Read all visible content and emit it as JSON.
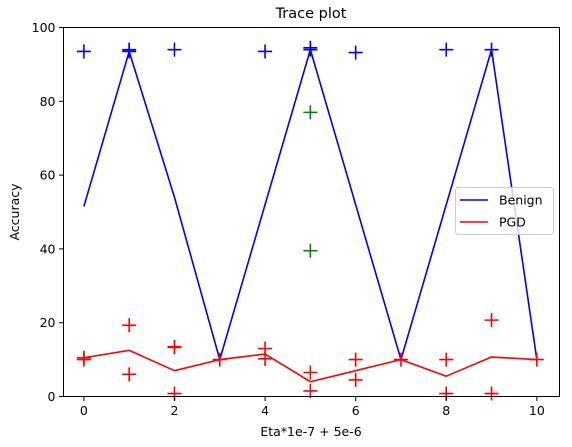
{
  "chart_data": {
    "type": "line",
    "title": "Trace plot",
    "xlabel": "Eta*1e-7 + 5e-6",
    "ylabel": "Accuracy",
    "xlim": [
      -0.45,
      10.5
    ],
    "ylim": [
      0,
      100
    ],
    "xticks": [
      0,
      2,
      4,
      6,
      8,
      10
    ],
    "yticks": [
      0,
      20,
      40,
      60,
      80,
      100
    ],
    "grid": false,
    "legend_position": "center-right",
    "series": [
      {
        "name": "Benign",
        "color": "#0000ff",
        "x": [
          0,
          1,
          2,
          3,
          4,
          5,
          6,
          7,
          8,
          9,
          10
        ],
        "y": [
          51.5,
          93.5,
          54,
          10,
          52,
          94,
          52,
          10,
          52,
          94,
          10
        ]
      },
      {
        "name": "PGD",
        "color": "#ff0000",
        "x": [
          0,
          1,
          2,
          3,
          4,
          5,
          6,
          7,
          8,
          9,
          10
        ],
        "y": [
          10.5,
          12.5,
          7,
          10,
          11.5,
          4,
          7,
          10,
          5.5,
          10.7,
          10
        ]
      }
    ],
    "scatter": [
      {
        "color": "#0000ff",
        "marker": "plus",
        "points": [
          [
            0,
            93.5
          ],
          [
            1,
            94
          ],
          [
            1,
            93.5
          ],
          [
            2,
            94
          ],
          [
            4,
            93.5
          ],
          [
            5,
            94.5
          ],
          [
            5,
            94
          ],
          [
            6,
            93.2
          ],
          [
            8,
            94
          ],
          [
            9,
            94
          ]
        ]
      },
      {
        "color": "#008000",
        "marker": "plus",
        "points": [
          [
            5,
            77
          ],
          [
            5,
            39.5
          ]
        ]
      },
      {
        "color": "#ff0000",
        "marker": "plus",
        "points": [
          [
            0,
            10.5
          ],
          [
            0,
            10
          ],
          [
            1,
            19.3
          ],
          [
            1,
            6
          ],
          [
            2,
            13.5
          ],
          [
            2,
            13.3
          ],
          [
            2,
            0.8
          ],
          [
            3,
            10
          ],
          [
            4,
            13
          ],
          [
            4,
            10.2
          ],
          [
            5,
            6.5
          ],
          [
            5,
            1.5
          ],
          [
            6,
            10
          ],
          [
            6,
            4.5
          ],
          [
            7,
            10
          ],
          [
            8,
            10
          ],
          [
            8,
            0.8
          ],
          [
            9,
            20.7
          ],
          [
            9,
            0.8
          ],
          [
            10,
            10
          ]
        ]
      }
    ]
  }
}
